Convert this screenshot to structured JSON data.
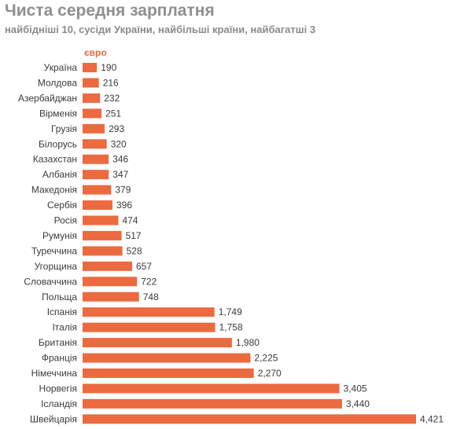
{
  "chart_data": {
    "type": "bar",
    "orientation": "horizontal",
    "title": "Чиста середня зарплатня",
    "subtitle": "найбідніші 10, сусіди України, найбільші країни, найбагатші 3",
    "unit_label": "євро",
    "color": "#ec6a3f",
    "xlim": [
      0,
      4421
    ],
    "categories": [
      "Україна",
      "Молдова",
      "Азербайджан",
      "Вірменія",
      "Грузія",
      "Білорусь",
      "Казахстан",
      "Албанія",
      "Македонія",
      "Сербія",
      "Росія",
      "Румунія",
      "Туреччина",
      "Угорщина",
      "Словаччина",
      "Польща",
      "Іспанія",
      "Італія",
      "Британія",
      "Франція",
      "Німеччина",
      "Норвегія",
      "Ісландія",
      "Швейцарія"
    ],
    "values": [
      190,
      216,
      232,
      251,
      293,
      320,
      346,
      347,
      379,
      396,
      474,
      517,
      528,
      657,
      722,
      748,
      1749,
      1758,
      1980,
      2225,
      2270,
      3405,
      3440,
      4421
    ],
    "value_labels": [
      "190",
      "216",
      "232",
      "251",
      "293",
      "320",
      "346",
      "347",
      "379",
      "396",
      "474",
      "517",
      "528",
      "657",
      "722",
      "748",
      "1,749",
      "1,758",
      "1,980",
      "2,225",
      "2,270",
      "3,405",
      "3,440",
      "4,421"
    ]
  }
}
